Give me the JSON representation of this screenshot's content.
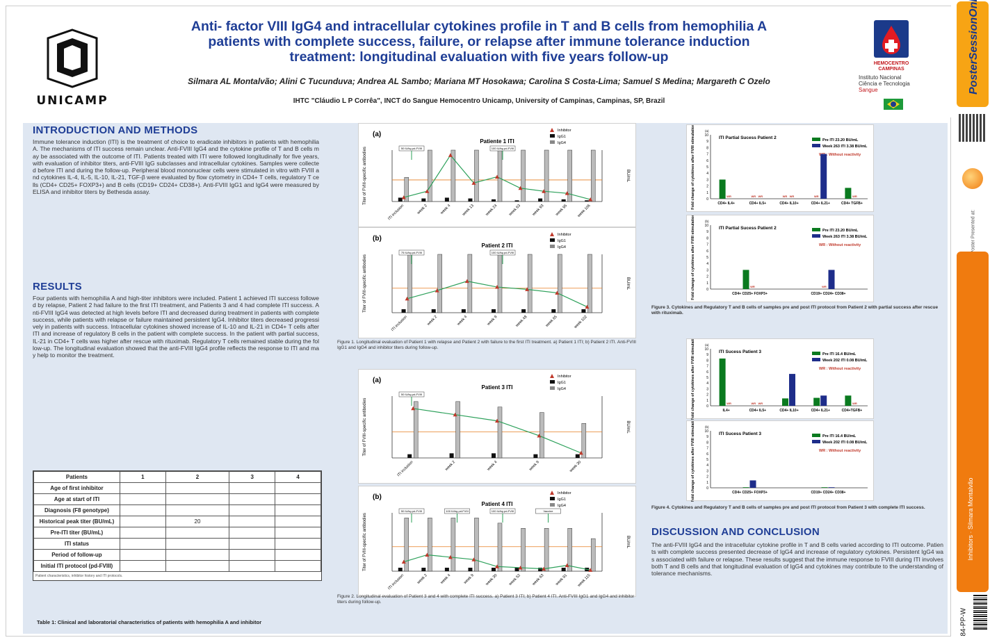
{
  "header": {
    "title_line1": "Anti- factor VIII IgG4 and intracellular cytokines profile in T and B cells from hemophilia A",
    "title_line2": "patients with complete success, failure, or relapse after immune tolerance induction",
    "title_line3": "treatment: longitudinal evaluation with five years follow-up",
    "authors": "Silmara AL Montalvão; Alini C Tucunduva; Andrea AL Sambo; Mariana MT Hosokawa; Carolina S Costa-Lima; Samuel S Medina; Margareth C Ozelo",
    "affiliation": "IHTC \"Cláudio L P Corrêa\", INCT do Sangue Hemocentro Unicamp, University of Campinas, Campinas, SP, Brazil",
    "logo_left": "UNICAMP",
    "logo_right_1": "HEMOCENTRO",
    "logo_right_2": "CAMPINAS",
    "inst_1": "Instituto Nacional",
    "inst_2": "Ciência e Tecnologia",
    "inst_3": "Sangue"
  },
  "sidebar": {
    "brand": "PosterSessionOnline",
    "presented": "Poster Presented at:",
    "author": "Silmara Montalvão",
    "topic": "Inhibitors",
    "code": "84-PP-W"
  },
  "sections": {
    "intro": "INTRODUCTION AND METHODS",
    "results": "RESULTS",
    "discussion": "DISCUSSION AND CONCLUSION"
  },
  "text": {
    "intro": "Immune tolerance induction (ITI) is the treatment of choice to eradicate inhibitors in patients with hemophilia A. The mechanisms of ITI success remain unclear. Anti-FVIII IgG4 and the cytokine profile of T and B cells may be associated with the outcome of ITI. Patients treated with ITI were followed longitudinally for five years, with evaluation of inhibitor titers, anti-FVIII IgG subclasses and intracellular cytokines. Samples were collected before ITI and during the follow-up. Peripheral blood mononuclear cells were stimulated in vitro with FVIII and cytokines IL-4, IL-5, IL-10, IL-21, TGF-β were evaluated by flow cytometry in CD4+ T cells, regulatory T cells (CD4+ CD25+ FOXP3+) and B cells (CD19+ CD24+ CD38+). Anti-FVIII IgG1 and IgG4 were measured by ELISA and inhibitor titers by Bethesda assay.",
    "results": "Four patients with hemophilia A and high-titer inhibitors were included. Patient 1 achieved ITI success followed by relapse, Patient 2 had failure to the first ITI treatment, and Patients 3 and 4 had complete ITI success. Anti-FVIII IgG4 was detected at high levels before ITI and decreased during treatment in patients with complete success, while patients with relapse or failure maintained persistent IgG4. Inhibitor titers decreased progressively in patients with success. Intracellular cytokines showed increase of IL-10 and IL-21 in CD4+ T cells after ITI and increase of regulatory B cells in the patient with complete success. In the patient with partial success, IL-21 in CD4+ T cells was higher after rescue with rituximab. Regulatory T cells remained stable during the follow-up. The longitudinal evaluation showed that the anti-FVIII IgG4 profile reflects the response to ITI and may help to monitor the treatment.",
    "discussion": "The anti-FVIII IgG4 and the intracellular cytokine profile in T and B cells varied according to ITI outcome. Patients with complete success presented decrease of IgG4 and increase of regulatory cytokines. Persistent IgG4 was associated with failure or relapse. These results suggest that the immune response to FVIII during ITI involves both T and B cells and that longitudinal evaluation of IgG4 and cytokines may contribute to the understanding of tolerance mechanisms.",
    "table_note": "Patient characteristics, inhibitor history and ITI protocols.",
    "table_caption": "Table 1: Clinical and laboratorial characteristics of patients with hemophilia A and inhibitor",
    "fig1_caption": "Figure 1. Longitudinal evaluation of Patient 1 with relapse and Patient 2 with failure to the first ITI treatment. a) Patient 1 ITI; b) Patient 2 ITI. Anti-FVIII IgG1 and IgG4 and inhibitor titers during follow-up.",
    "fig2_caption": "Figure 2. Longitudinal evaluation of Patient 3 and 4 with complete ITI success. a) Patient 3 ITI; b) Patient 4 ITI. Anti-FVIII IgG1 and IgG4 and inhibitor titers during follow-up.",
    "fig3_caption": "Figure 3. Cytokines and Regulatory T and B cells of samples pre and post ITI protocol from Patient 2 with partial success after rescue with rituximab.",
    "fig4_caption": "Figure 4. Cytokines and Regulatory T and B cells of samples pre and post ITI protocol from Patient 3 with complete ITI success."
  },
  "table": {
    "headers": [
      "Patients",
      "1",
      "2",
      "3",
      "4"
    ],
    "rows": [
      [
        "Age of first inhibitor",
        "",
        "",
        "",
        ""
      ],
      [
        "Age at start of ITI",
        "",
        "",
        "",
        ""
      ],
      [
        "Diagnosis (F8 genotype)",
        "",
        "",
        "",
        ""
      ],
      [
        "Historical peak titer (BU/mL)",
        "",
        "20",
        "",
        ""
      ],
      [
        "Pre-ITI titer (BU/mL)",
        "",
        "",
        "",
        ""
      ],
      [
        "ITI status",
        "",
        "",
        "",
        ""
      ],
      [
        "Period of follow-up",
        "",
        "",
        "",
        ""
      ],
      [
        "Initial ITI protocol (pd-FVIII)",
        "",
        "",
        "",
        ""
      ]
    ]
  },
  "chart_data": [
    {
      "type": "bar",
      "panel": "(a)",
      "title": "Patiente 1 ITI",
      "categories": [
        "ITI inclusion",
        "week 2",
        "week 4",
        "week 13",
        "week 24",
        "week 63",
        "week 93",
        "week 95",
        "week 106"
      ],
      "series": [
        {
          "name": "Inhibitor",
          "values": [
            4,
            10,
            45,
            18,
            24,
            13,
            10,
            8,
            2
          ]
        },
        {
          "name": "IgG1",
          "values": [
            0.9,
            0.8,
            0.9,
            0.8,
            0.7,
            0.6,
            0.8,
            0.7,
            0.6
          ]
        },
        {
          "name": "IgG4",
          "values": [
            20,
            1280,
            1280,
            1280,
            1280,
            1280,
            1280,
            1280,
            1280
          ]
        }
      ],
      "annotations": [
        "50 IU/kg pd-FVIII",
        "100 IU/kg pd-FVIII"
      ],
      "ylabel": "Titer of FVIII-specific antibodies",
      "y2label": "BU/mL"
    },
    {
      "type": "bar",
      "panel": "(b)",
      "title": "Patient 2 ITI",
      "categories": [
        "ITI inclusion",
        "week 2",
        "week 4",
        "week 9",
        "week 48",
        "week 65",
        "week 102"
      ],
      "series": [
        {
          "name": "Inhibitor",
          "values": [
            12,
            19,
            27,
            22,
            20,
            17,
            5
          ]
        },
        {
          "name": "IgG1",
          "values": [
            0.8,
            0.8,
            0.8,
            0.8,
            0.8,
            0.8,
            0.8
          ]
        },
        {
          "name": "IgG4",
          "values": [
            1280,
            1280,
            1280,
            1280,
            1280,
            1280,
            1280
          ]
        }
      ],
      "annotations": [
        "75 IU/kg pd-FVIII",
        "100 IU/kg pd-FVIII"
      ],
      "ylabel": "Titer of FVIII-specific antibodies",
      "y2label": "BU/mL"
    },
    {
      "type": "bar",
      "panel": "(a)",
      "title": "Patient 3 ITI",
      "categories": [
        "ITI inclusion",
        "week 2",
        "week 4",
        "week 9",
        "week 30"
      ],
      "series": [
        {
          "name": "Inhibitor",
          "values": [
            40,
            35,
            30,
            18,
            4
          ]
        },
        {
          "name": "IgG1",
          "values": [
            0.8,
            0.9,
            0.9,
            0.8,
            0.8
          ]
        },
        {
          "name": "IgG4",
          "values": [
            640,
            640,
            320,
            160,
            40
          ]
        }
      ],
      "annotations": [
        "50 IU/kg pd-FVIII"
      ],
      "ylabel": "Titer of FVIII-specific antibodies",
      "y2label": "BU/mL"
    },
    {
      "type": "bar",
      "panel": "(b)",
      "title": "Patient 4 ITI",
      "categories": [
        "ITI inclusion",
        "week 2",
        "week 4",
        "week 9",
        "week 30",
        "week 52",
        "week 63",
        "week 91",
        "week 115"
      ],
      "series": [
        {
          "name": "Inhibitor",
          "values": [
            8,
            14,
            12,
            10,
            4,
            3,
            2,
            5,
            1
          ]
        },
        {
          "name": "IgG1",
          "values": [
            0.8,
            0.8,
            0.8,
            0.8,
            0.8,
            0.8,
            0.8,
            0.8,
            0.8
          ]
        },
        {
          "name": "IgG4",
          "values": [
            640,
            640,
            640,
            640,
            320,
            160,
            160,
            160,
            40
          ]
        }
      ],
      "annotations": [
        "50 IU/kg pd-FVIII",
        "100 IU/kg pd-FVIII",
        "100 IU/kg pd-FVIII",
        "Vaccine"
      ],
      "ylabel": "Titer of FVIII-specific antibodies",
      "y2label": "BU/mL"
    },
    {
      "type": "bar",
      "panel": "(a)",
      "title": "ITI Partial Sucess Patient 2",
      "categories": [
        "CD4+ IL4+",
        "CD4+ IL5+",
        "CD4+ IL10+",
        "CD4+ IL21+",
        "CD4+ TGFB+"
      ],
      "series": [
        {
          "name": "Pre ITI 23.20 BU/mL",
          "values": [
            3.0,
            0,
            0,
            0,
            1.7
          ]
        },
        {
          "name": "Week 263 ITI 3.38 BU/mL",
          "values": [
            0,
            0,
            0,
            7.0,
            0
          ]
        }
      ],
      "ylim": [
        0,
        10
      ],
      "ylabel": "Fold change of cytokines after FVIII stimulation",
      "note": "WR : Without reactivity"
    },
    {
      "type": "bar",
      "panel": "(b)",
      "title": "ITI Partial Sucess Patient 2",
      "categories": [
        "CD4+ CD25+ FOXP3+",
        "CD19+ CD24+ CD38+"
      ],
      "series": [
        {
          "name": "Pre ITI 23.20 BU/mL",
          "values": [
            3.0,
            0
          ]
        },
        {
          "name": "Week 263 ITI 3.38 BU/mL",
          "values": [
            0,
            3.0
          ]
        }
      ],
      "ylim": [
        0,
        10
      ],
      "ylabel": "Fold change of cytokines after FVIII stimulation",
      "note": "WR : Without reactivity"
    },
    {
      "type": "bar",
      "panel": "(a)",
      "title": "ITI Sucess Patient 3",
      "categories": [
        "IL4+",
        "CD4+ IL5+",
        "CD4+ IL10+",
        "CD4+ IL21+",
        "CD4+TGFB+"
      ],
      "series": [
        {
          "name": "Pre ITI 16.4 BU/mL",
          "values": [
            8.3,
            0,
            1.3,
            1.4,
            1.8
          ]
        },
        {
          "name": "Week 202 ITI 0.08 BU/mL",
          "values": [
            0,
            0,
            5.6,
            1.8,
            0
          ]
        }
      ],
      "ylim": [
        0,
        10
      ],
      "ylabel": "Fold change of cytokines after FVIII stimulation",
      "note": "WR : Without reactivity"
    },
    {
      "type": "bar",
      "panel": "(b)",
      "title": "ITI Sucess Patient 3",
      "categories": [
        "CD4+ CD25+ FOXP3+",
        "CD19+ CD24+ CD38+"
      ],
      "series": [
        {
          "name": "Pre ITI 16.4 BU/mL",
          "values": [
            0.1,
            0.1
          ]
        },
        {
          "name": "Week 202 ITI 0.08 BU/mL",
          "values": [
            1.3,
            0.1
          ]
        }
      ],
      "ylim": [
        0,
        10
      ],
      "ylabel": "Fold change of cytokines after FVIII stimulation",
      "note": "WR : Without reactivity"
    }
  ]
}
